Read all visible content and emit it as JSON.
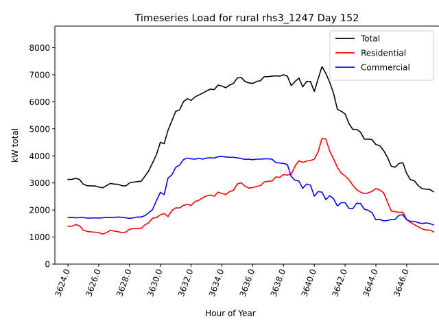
{
  "chart_data": {
    "type": "line",
    "title": "Timeseries Load for rural rhs3_1247  Day 152",
    "xlabel": "Hour of Year",
    "ylabel": "kW total",
    "xlim": [
      3623.15,
      3648.1
    ],
    "ylim": [
      0,
      8800
    ],
    "xticks": [
      3624,
      3626,
      3628,
      3630,
      3632,
      3634,
      3636,
      3638,
      3640,
      3642,
      3644,
      3646
    ],
    "xtick_labels": [
      "3624.0",
      "3626.0",
      "3628.0",
      "3630.0",
      "3632.0",
      "3634.0",
      "3636.0",
      "3638.0",
      "3640.0",
      "3642.0",
      "3644.0",
      "3646.0"
    ],
    "yticks": [
      0,
      1000,
      2000,
      3000,
      4000,
      5000,
      6000,
      7000,
      8000
    ],
    "ytick_labels": [
      "0",
      "1000",
      "2000",
      "3000",
      "4000",
      "5000",
      "6000",
      "7000",
      "8000"
    ],
    "x_start": 3624.0,
    "x_step": 0.25,
    "legend_position": "top-right",
    "series": [
      {
        "name": "Total",
        "color": "#000000",
        "values": [
          3130,
          3130,
          3170,
          3130,
          2950,
          2900,
          2890,
          2890,
          2850,
          2820,
          2900,
          2980,
          2960,
          2950,
          2900,
          2890,
          3000,
          3030,
          3050,
          3060,
          3250,
          3450,
          3750,
          4050,
          4500,
          4450,
          4950,
          5300,
          5650,
          5700,
          6000,
          6120,
          6050,
          6180,
          6250,
          6320,
          6400,
          6470,
          6450,
          6620,
          6580,
          6520,
          6620,
          6680,
          6880,
          6900,
          6750,
          6700,
          6680,
          6750,
          6780,
          6930,
          6930,
          6950,
          6960,
          6950,
          7000,
          6950,
          6600,
          6750,
          6880,
          6550,
          6750,
          6750,
          6380,
          6850,
          7300,
          7050,
          6720,
          6320,
          5720,
          5650,
          5550,
          5200,
          4980,
          4980,
          4880,
          4620,
          4620,
          4600,
          4420,
          4380,
          4200,
          3950,
          3620,
          3580,
          3720,
          3750,
          3350,
          3120,
          3080,
          2900,
          2790,
          2770,
          2760,
          2670
        ]
      },
      {
        "name": "Residential",
        "color": "#ff0000",
        "values": [
          1400,
          1400,
          1460,
          1420,
          1250,
          1210,
          1190,
          1180,
          1160,
          1110,
          1160,
          1250,
          1220,
          1200,
          1160,
          1180,
          1290,
          1310,
          1310,
          1320,
          1450,
          1530,
          1700,
          1720,
          1820,
          1870,
          1760,
          1980,
          2080,
          2070,
          2170,
          2210,
          2170,
          2310,
          2360,
          2450,
          2520,
          2550,
          2510,
          2660,
          2610,
          2570,
          2680,
          2730,
          2960,
          3010,
          2880,
          2810,
          2830,
          2870,
          2900,
          3040,
          3060,
          3070,
          3220,
          3210,
          3310,
          3290,
          3320,
          3620,
          3820,
          3760,
          3810,
          3830,
          3880,
          4150,
          4650,
          4620,
          4180,
          3890,
          3580,
          3360,
          3260,
          3120,
          2920,
          2750,
          2660,
          2610,
          2630,
          2690,
          2790,
          2740,
          2640,
          2300,
          1960,
          1940,
          1910,
          1920,
          1650,
          1540,
          1460,
          1380,
          1300,
          1260,
          1260,
          1190
        ]
      },
      {
        "name": "Commercial",
        "color": "#0000ff",
        "values": [
          1720,
          1730,
          1710,
          1720,
          1720,
          1700,
          1700,
          1710,
          1700,
          1710,
          1730,
          1720,
          1730,
          1740,
          1730,
          1710,
          1690,
          1710,
          1740,
          1740,
          1790,
          1900,
          2020,
          2350,
          2650,
          2570,
          3180,
          3300,
          3580,
          3660,
          3860,
          3920,
          3890,
          3880,
          3910,
          3880,
          3920,
          3930,
          3920,
          3970,
          3980,
          3960,
          3950,
          3950,
          3930,
          3900,
          3870,
          3880,
          3860,
          3880,
          3880,
          3890,
          3890,
          3880,
          3750,
          3740,
          3720,
          3680,
          3240,
          3100,
          3070,
          2800,
          2960,
          2920,
          2510,
          2680,
          2660,
          2380,
          2530,
          2420,
          2150,
          2270,
          2270,
          2060,
          2050,
          2250,
          2240,
          2030,
          1990,
          1900,
          1640,
          1650,
          1600,
          1610,
          1650,
          1650,
          1810,
          1820,
          1640,
          1580,
          1580,
          1530,
          1500,
          1520,
          1500,
          1450
        ]
      }
    ]
  }
}
